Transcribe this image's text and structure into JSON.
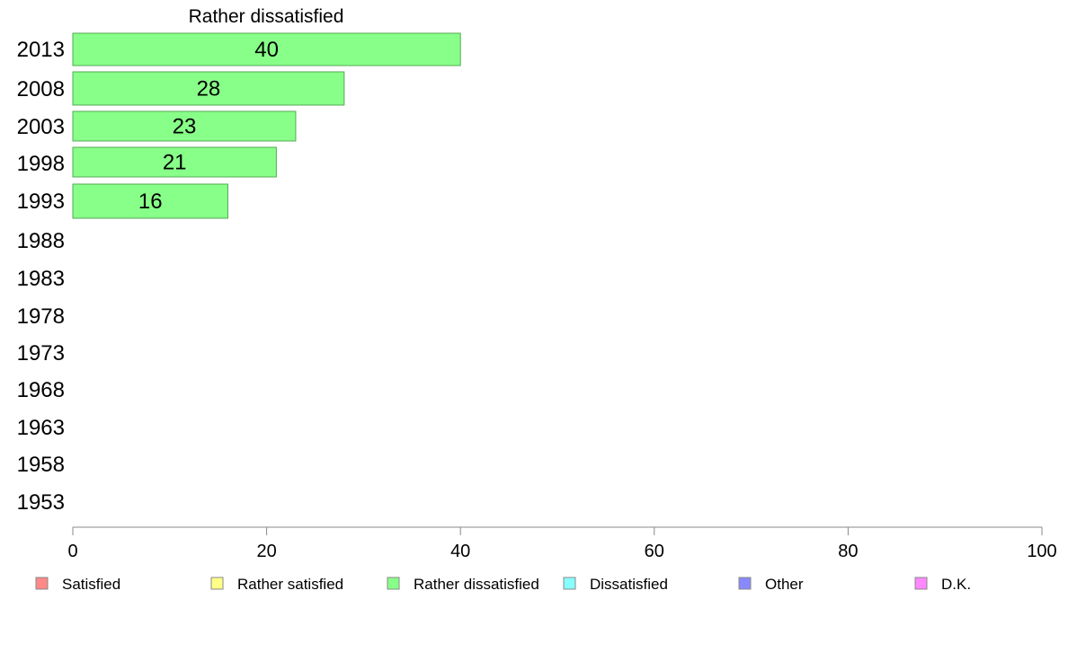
{
  "chart_data": {
    "type": "bar",
    "orientation": "horizontal",
    "title": "Rather dissatisfied",
    "categories": [
      "2013",
      "2008",
      "2003",
      "1998",
      "1993",
      "1988",
      "1983",
      "1978",
      "1973",
      "1968",
      "1963",
      "1958",
      "1953"
    ],
    "series": [
      {
        "name": "Rather dissatisfied",
        "values": [
          40,
          28,
          23,
          21,
          16,
          null,
          null,
          null,
          null,
          null,
          null,
          null,
          null
        ],
        "color": "#88ff88"
      }
    ],
    "data_labels": [
      "40",
      "28",
      "23",
      "21",
      "16"
    ],
    "xlim": [
      0,
      100
    ],
    "xticks": [
      0,
      20,
      40,
      60,
      80,
      100
    ],
    "xtick_labels": [
      "0",
      "20",
      "40",
      "60",
      "80",
      "100"
    ],
    "grid": false,
    "legend_position": "bottom",
    "legend": [
      {
        "label": "Satisfied",
        "color": "#ff8888"
      },
      {
        "label": "Rather satisfied",
        "color": "#ffff88"
      },
      {
        "label": "Rather dissatisfied",
        "color": "#88ff88"
      },
      {
        "label": "Dissatisfied",
        "color": "#88ffff"
      },
      {
        "label": "Other",
        "color": "#8888ff"
      },
      {
        "label": "D.K.",
        "color": "#ff88ff"
      }
    ]
  }
}
